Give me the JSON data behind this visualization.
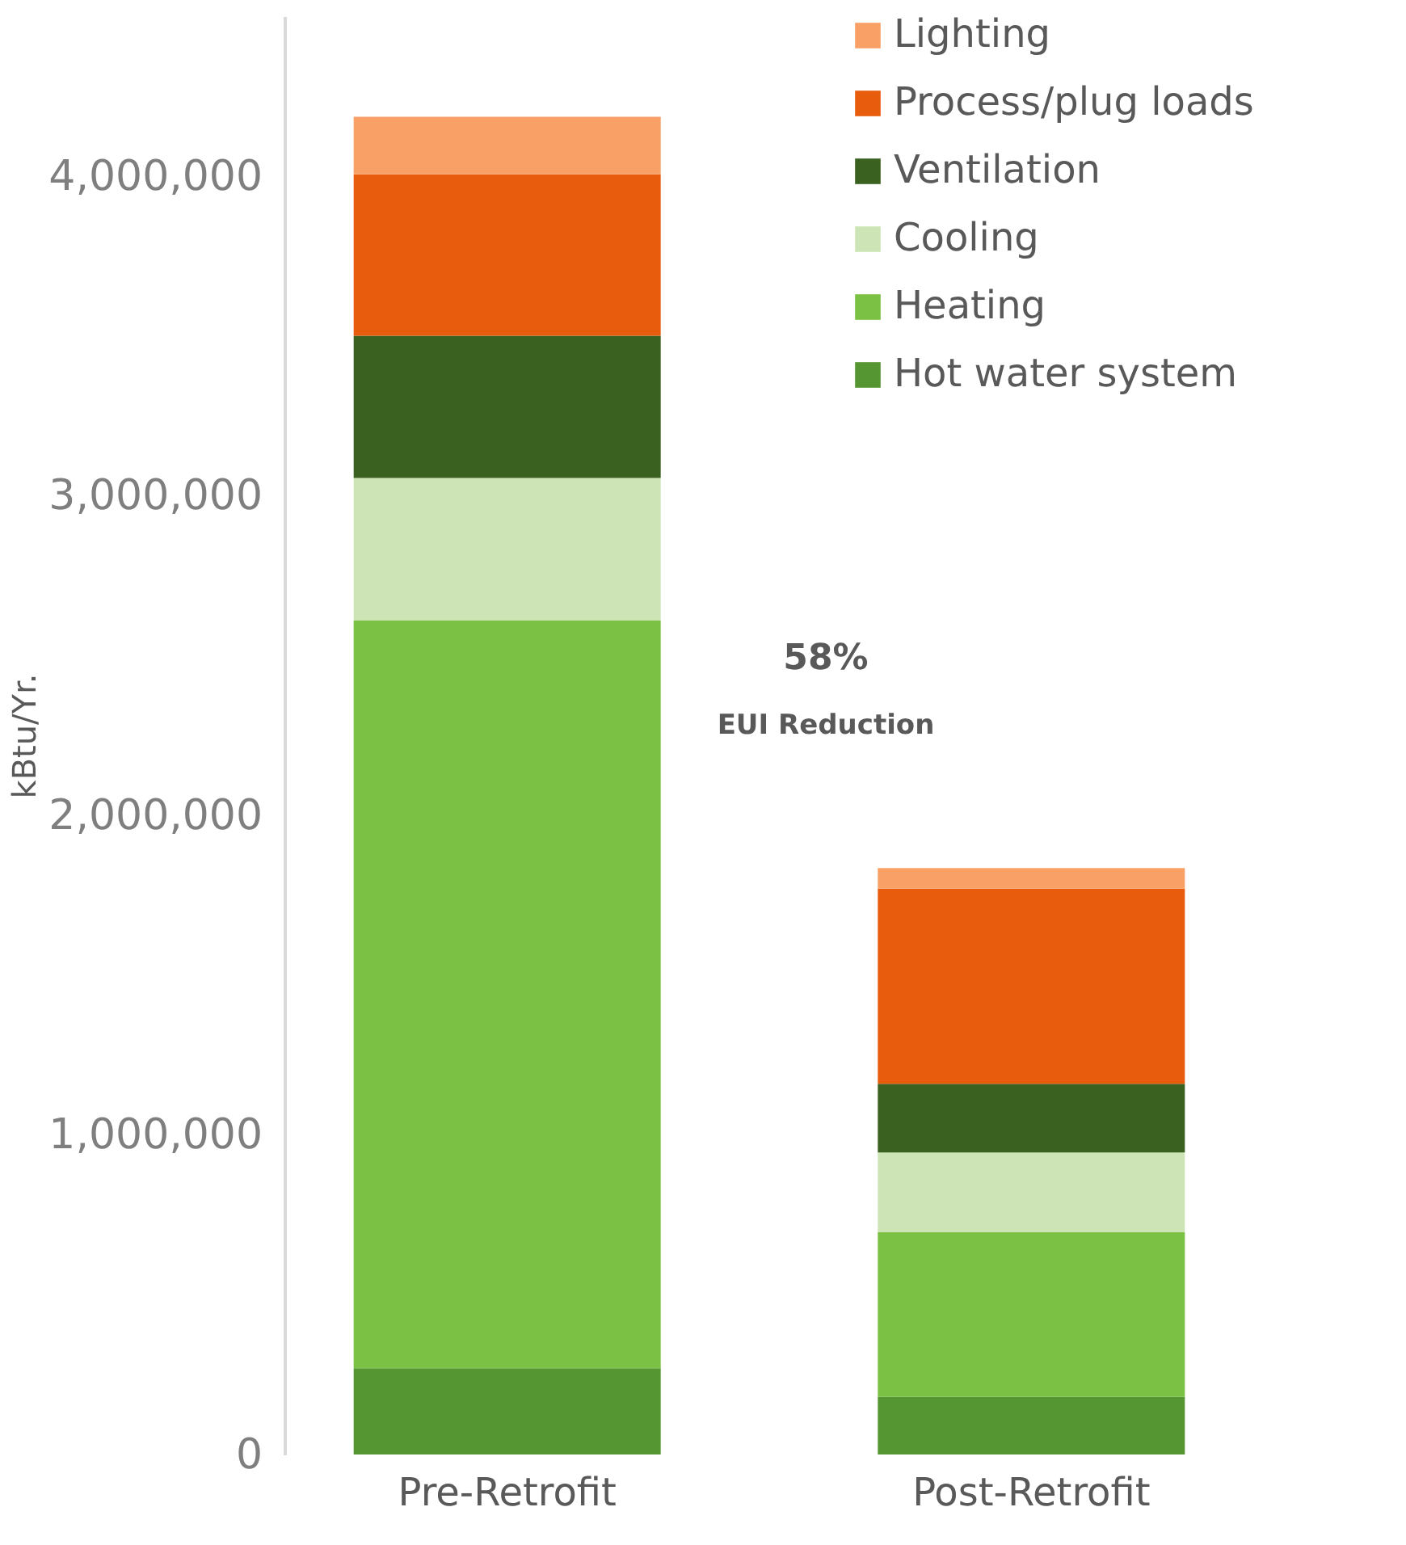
{
  "chart_data": {
    "type": "bar",
    "stacked": true,
    "ylabel": "kBtu/Yr.",
    "categories": [
      "Pre-Retrofit",
      "Post-Retrofit"
    ],
    "series": [
      {
        "name": "Hot water system",
        "color": "#559632",
        "values": [
          270000,
          180000
        ]
      },
      {
        "name": "Heating",
        "color": "#7bc143",
        "values": [
          2340000,
          515000
        ]
      },
      {
        "name": "Cooling",
        "color": "#cde5b6",
        "values": [
          445000,
          250000
        ]
      },
      {
        "name": "Ventilation",
        "color": "#3b6120",
        "values": [
          445000,
          215000
        ]
      },
      {
        "name": "Process/plug loads",
        "color": "#e85c0d",
        "values": [
          505000,
          610000
        ]
      },
      {
        "name": "Lighting",
        "color": "#f9a066",
        "values": [
          180000,
          65000
        ]
      }
    ],
    "ylim": [
      0,
      4500000
    ],
    "yticks": [
      0,
      {
        "value": 1000000,
        "label": "1,000,000"
      },
      {
        "value": 2000000,
        "label": "2,000,000"
      },
      {
        "value": 3000000,
        "label": "3,000,000"
      },
      {
        "value": 4000000,
        "label": "4,000,000"
      }
    ],
    "grid": false,
    "legend": "top right",
    "annotations": [
      "58%",
      "EUI Reduction"
    ]
  }
}
